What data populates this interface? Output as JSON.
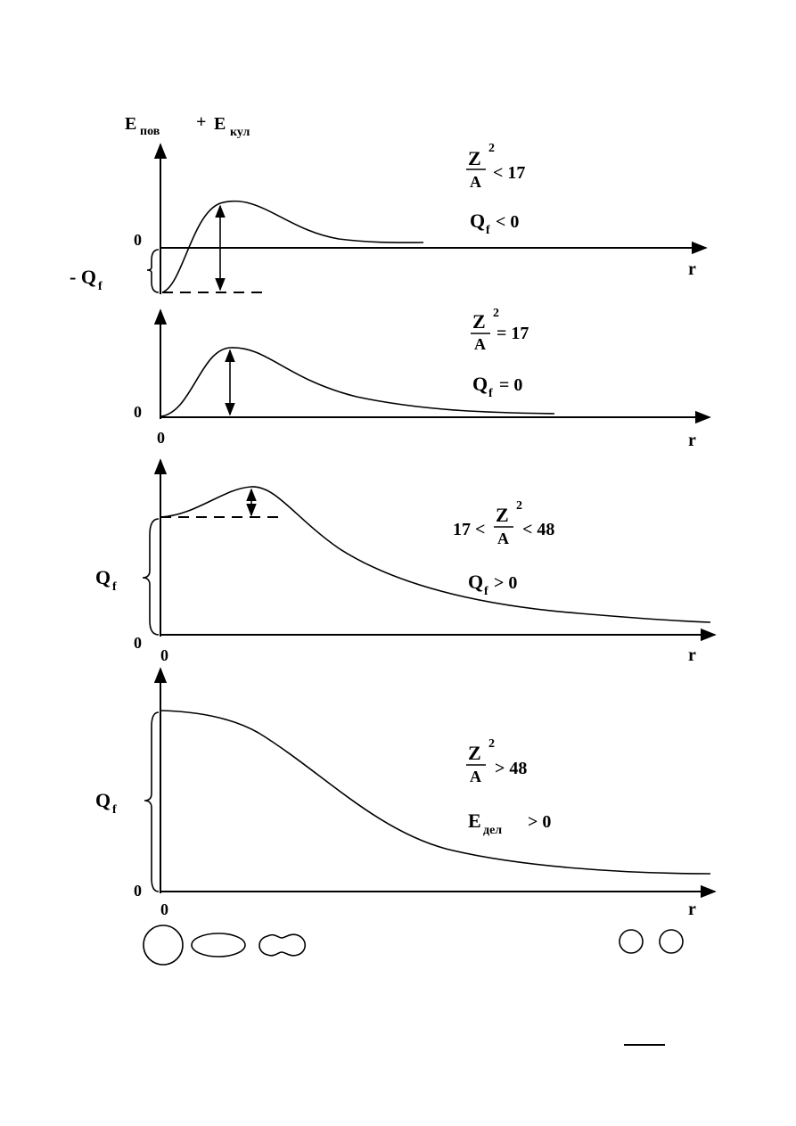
{
  "axis_label": {
    "main": "E",
    "main_sub": "пов",
    "plus": "+",
    "second": "E",
    "second_sub": "кул"
  },
  "panels": [
    {
      "fraction": {
        "numerator": "Z",
        "exponent": "2",
        "denominator": "A"
      },
      "relation": "< 17",
      "energy": {
        "symbol": "Q",
        "subscript": "f",
        "relation": "< 0"
      },
      "zero_label": "0",
      "offset_label": {
        "symbol": "- Q",
        "subscript": "f"
      },
      "axis_r": "r"
    },
    {
      "fraction": {
        "numerator": "Z",
        "exponent": "2",
        "denominator": "A"
      },
      "relation": "= 17",
      "energy": {
        "symbol": "Q",
        "subscript": "f",
        "relation": "= 0"
      },
      "zero_label": "0",
      "zero_x": "0",
      "axis_r": "r"
    },
    {
      "prefix": "17 <",
      "fraction": {
        "numerator": "Z",
        "exponent": "2",
        "denominator": "A"
      },
      "relation": "< 48",
      "energy": {
        "symbol": "Q",
        "subscript": "f",
        "relation": "> 0"
      },
      "barrier_label": {
        "symbol": "Q",
        "subscript": "f"
      },
      "zero_label": "0",
      "zero_x": "0",
      "axis_r": "r"
    },
    {
      "fraction": {
        "numerator": "Z",
        "exponent": "2",
        "denominator": "A"
      },
      "relation": "> 48",
      "energy": {
        "symbol": "E",
        "subscript": "дел",
        "relation": "> 0"
      },
      "barrier_label": {
        "symbol": "Q",
        "subscript": "f"
      },
      "zero_label": "0",
      "zero_x": "0",
      "axis_r": "r"
    }
  ]
}
